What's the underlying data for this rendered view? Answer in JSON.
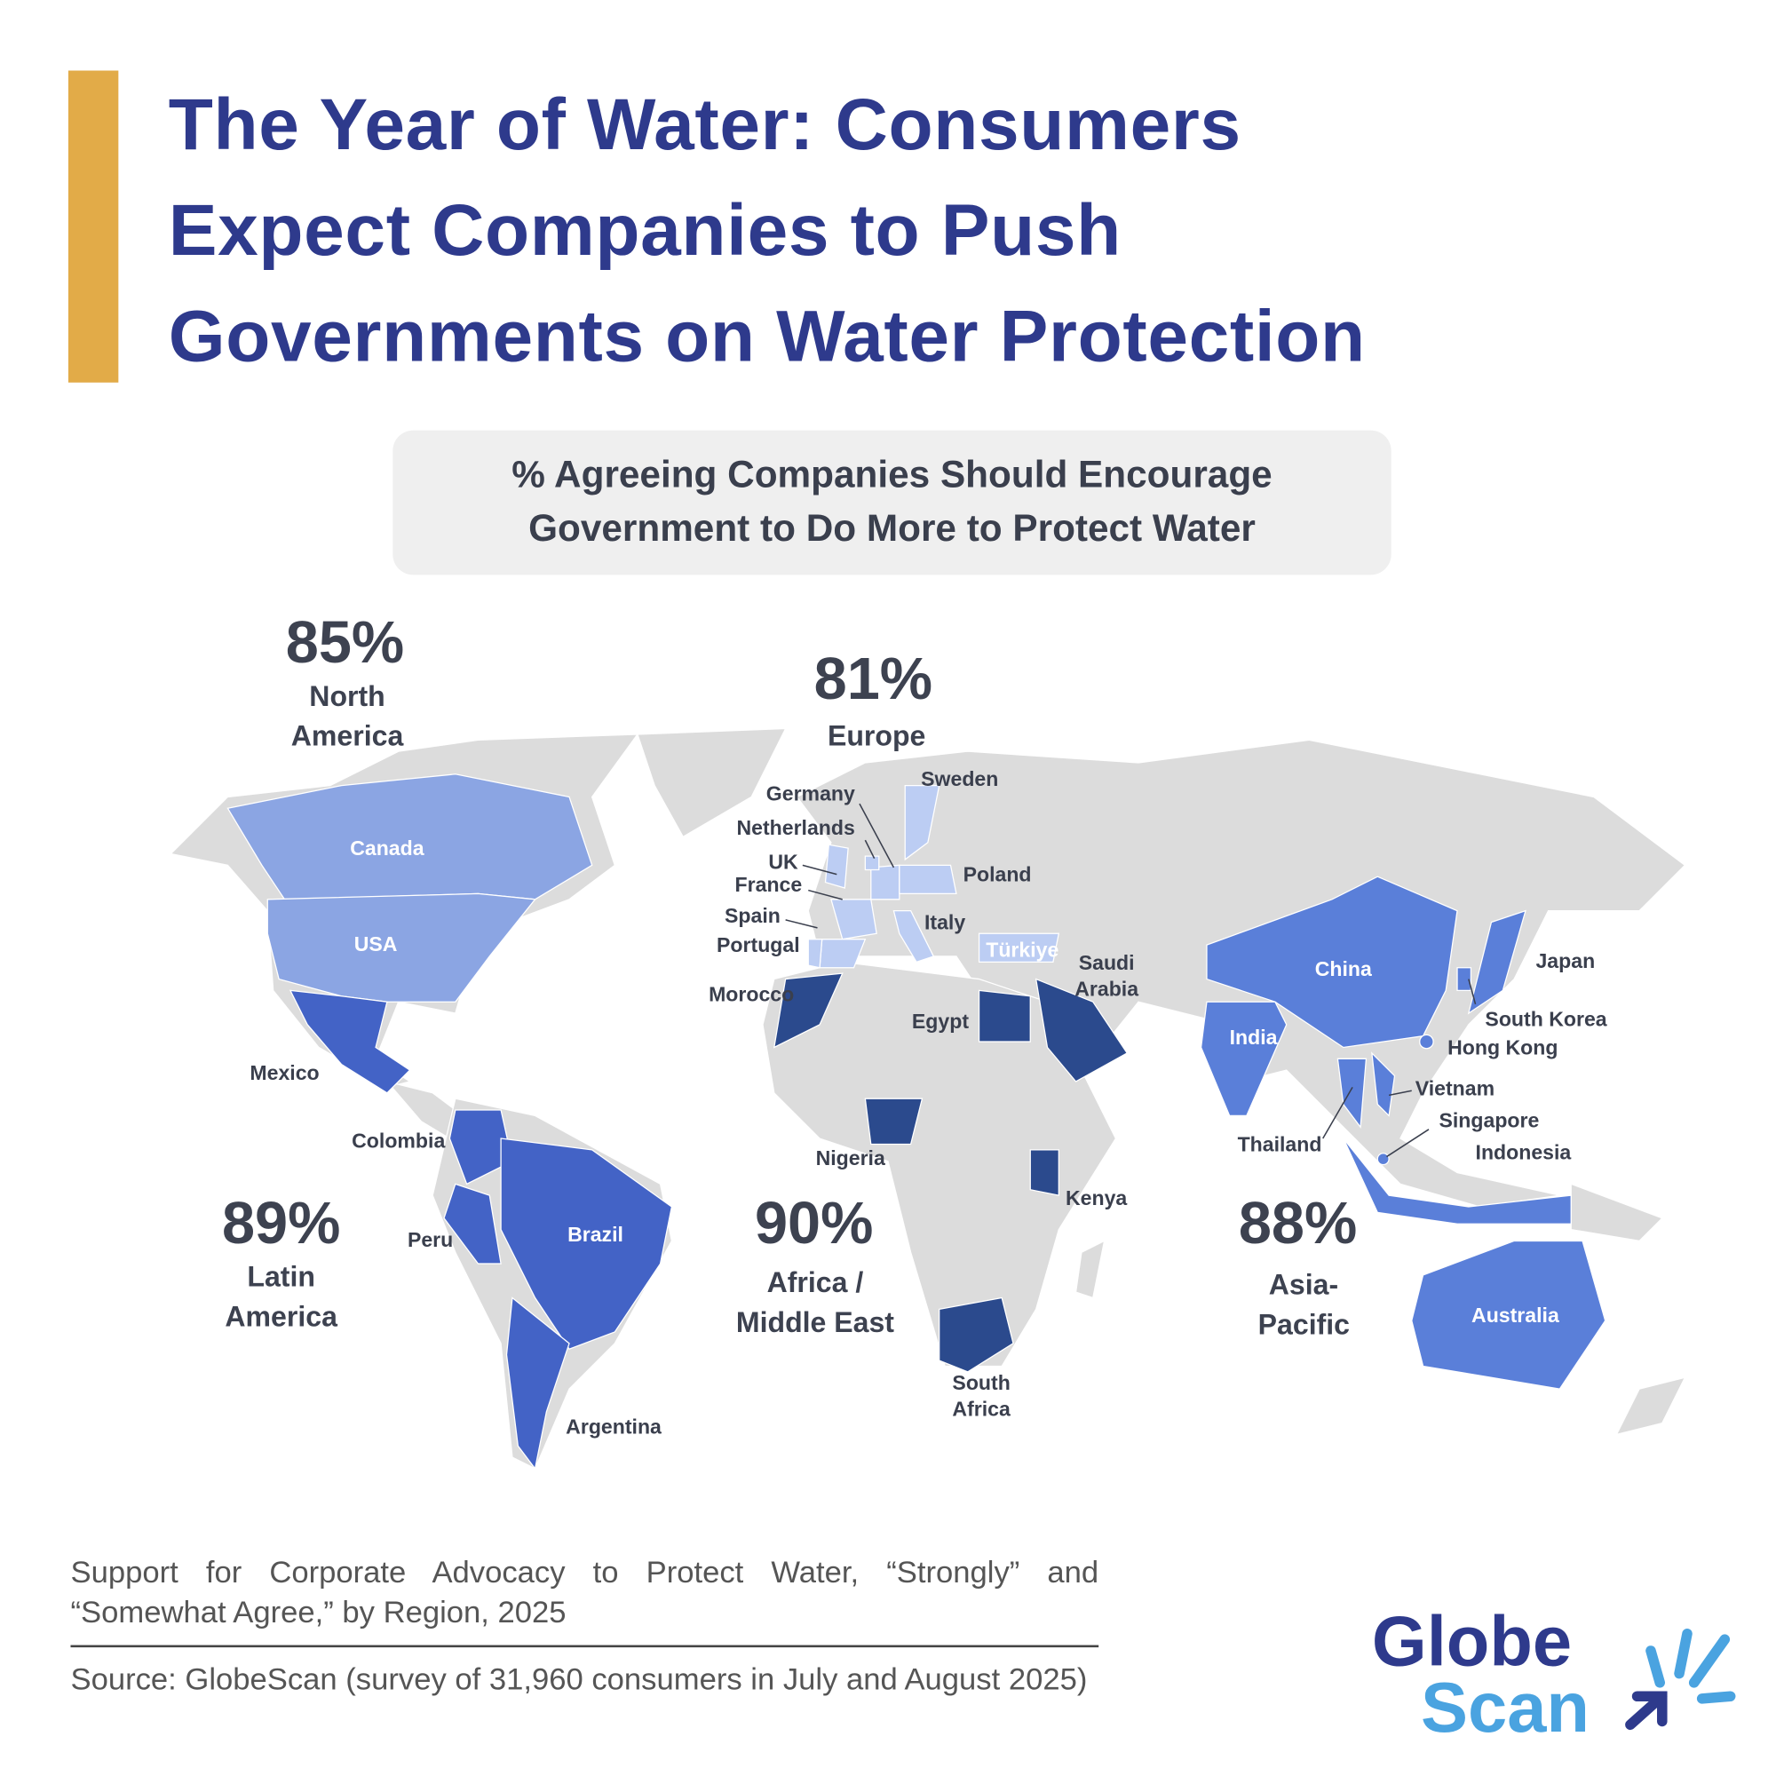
{
  "header": {
    "title_lines": [
      "The Year of Water: Consumers",
      "Expect Companies to Push",
      "Governments on Water Protection"
    ],
    "subtitle_lines": [
      "% Agreeing Companies Should Encourage",
      "Government to Do More to Protect Water"
    ]
  },
  "regions": [
    {
      "name": "North America",
      "value": 85,
      "value_label": "85%",
      "color": "#8ba5e3",
      "countries": [
        "Canada",
        "USA"
      ]
    },
    {
      "name": "Europe",
      "value": 81,
      "value_label": "81%",
      "color": "#bccdf3",
      "countries": [
        "Sweden",
        "Germany",
        "Netherlands",
        "UK",
        "France",
        "Poland",
        "Spain",
        "Italy",
        "Portugal",
        "Türkiye"
      ]
    },
    {
      "name": "Latin America",
      "value": 89,
      "value_label": "89%",
      "color": "#4363c6",
      "countries": [
        "Mexico",
        "Colombia",
        "Peru",
        "Brazil",
        "Argentina"
      ]
    },
    {
      "name": "Africa / Middle East",
      "value": 90,
      "value_label": "90%",
      "color": "#2b4a8d",
      "countries": [
        "Saudi Arabia",
        "Morocco",
        "Egypt",
        "Nigeria",
        "Kenya",
        "South Africa"
      ]
    },
    {
      "name": "Asia-Pacific",
      "value": 88,
      "value_label": "88%",
      "color": "#5a7fd9",
      "countries": [
        "Japan",
        "China",
        "South Korea",
        "India",
        "Hong Kong",
        "Vietnam",
        "Thailand",
        "Singapore",
        "Indonesia",
        "Australia"
      ]
    }
  ],
  "footer": {
    "note": "Support for Corporate Advocacy to Protect Water, “Strongly” and “Somewhat Agree,” by Region, 2025",
    "source": "Source: GlobeScan (survey of 31,960 consumers in July and August 2025)"
  },
  "logo": {
    "line1": "Globe",
    "line2": "Scan"
  }
}
